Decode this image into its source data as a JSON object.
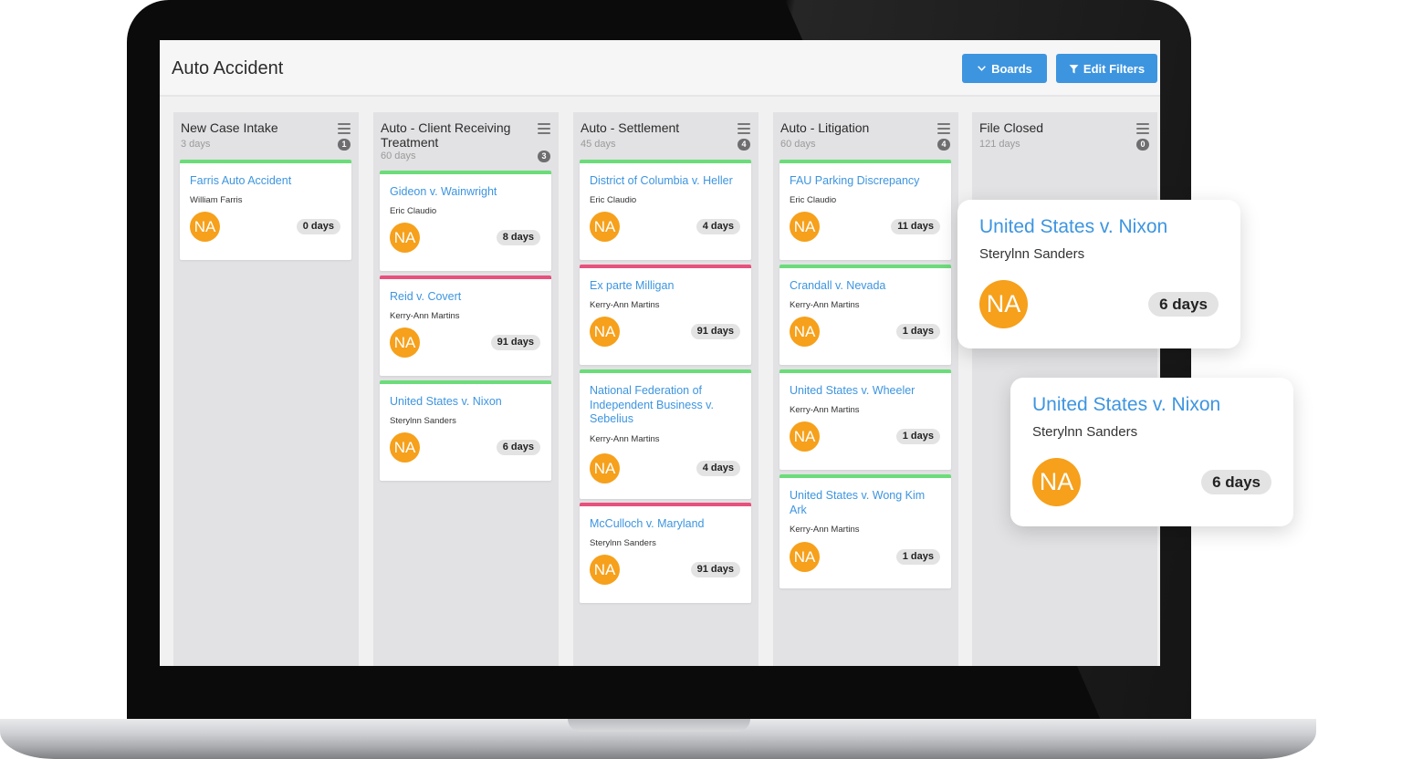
{
  "header": {
    "title": "Auto Accident",
    "boards_label": "Boards",
    "filters_label": "Edit Filters"
  },
  "columns": [
    {
      "title": "New Case Intake",
      "days": "3 days",
      "count": "1",
      "cards": [
        {
          "title": "Farris Auto Accident",
          "person": "William Farris",
          "initials": "NA",
          "days": "0 days",
          "status": "green"
        }
      ]
    },
    {
      "title": "Auto - Client Receiving Treatment",
      "days": "60 days",
      "count": "3",
      "cards": [
        {
          "title": "Gideon v. Wainwright",
          "person": "Eric Claudio",
          "initials": "NA",
          "days": "8 days",
          "status": "green"
        },
        {
          "title": "Reid v. Covert",
          "person": "Kerry-Ann Martins",
          "initials": "NA",
          "days": "91 days",
          "status": "red"
        },
        {
          "title": "United States v. Nixon",
          "person": "Sterylnn Sanders",
          "initials": "NA",
          "days": "6 days",
          "status": "green"
        }
      ]
    },
    {
      "title": "Auto - Settlement",
      "days": "45 days",
      "count": "4",
      "cards": [
        {
          "title": "District of Columbia v. Heller",
          "person": "Eric Claudio",
          "initials": "NA",
          "days": "4 days",
          "status": "green"
        },
        {
          "title": "Ex parte Milligan",
          "person": "Kerry-Ann Martins",
          "initials": "NA",
          "days": "91 days",
          "status": "red"
        },
        {
          "title": "National Federation of Independent Business v. Sebelius",
          "person": "Kerry-Ann Martins",
          "initials": "NA",
          "days": "4 days",
          "status": "green"
        },
        {
          "title": "McCulloch v. Maryland",
          "person": "Sterylnn Sanders",
          "initials": "NA",
          "days": "91 days",
          "status": "red"
        }
      ]
    },
    {
      "title": "Auto - Litigation",
      "days": "60 days",
      "count": "4",
      "cards": [
        {
          "title": "FAU Parking Discrepancy",
          "person": "Eric Claudio",
          "initials": "NA",
          "days": "11 days",
          "status": "green"
        },
        {
          "title": "Crandall v. Nevada",
          "person": "Kerry-Ann Martins",
          "initials": "NA",
          "days": "1 days",
          "status": "green"
        },
        {
          "title": "United States v. Wheeler",
          "person": "Kerry-Ann Martins",
          "initials": "NA",
          "days": "1 days",
          "status": "green"
        },
        {
          "title": "United States v. Wong Kim Ark",
          "person": "Kerry-Ann Martins",
          "initials": "NA",
          "days": "1 days",
          "status": "green"
        }
      ]
    },
    {
      "title": "File Closed",
      "days": "121 days",
      "count": "0",
      "cards": []
    }
  ],
  "floating_cards": [
    {
      "title": "United States v. Nixon",
      "person": "Sterylnn Sanders",
      "initials": "NA",
      "days": "6 days"
    },
    {
      "title": "United States v. Nixon",
      "person": "Sterylnn Sanders",
      "initials": "NA",
      "days": "6 days"
    }
  ],
  "colors": {
    "accent": "#3d95e0",
    "avatar": "#f6a01b",
    "status_green": "#6bdc7a",
    "status_red": "#e8507d"
  },
  "icons": {
    "menu": "hamburger-icon",
    "boards": "chevron-down-icon",
    "filters": "filter-icon"
  }
}
